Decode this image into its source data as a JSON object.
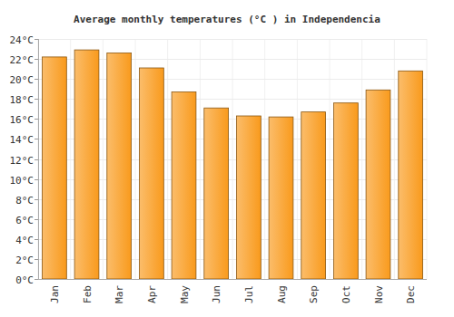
{
  "chart_data": {
    "type": "bar",
    "title": "Average monthly temperatures (°C ) in Independencia",
    "categories": [
      "Jan",
      "Feb",
      "Mar",
      "Apr",
      "May",
      "Jun",
      "Jul",
      "Aug",
      "Sep",
      "Oct",
      "Nov",
      "Dec"
    ],
    "values": [
      22.2,
      22.9,
      22.6,
      21.1,
      18.7,
      17.1,
      16.3,
      16.2,
      16.7,
      17.6,
      18.9,
      20.8
    ],
    "color": "#f99a1c",
    "ylim": [
      0,
      24
    ],
    "yticks": [
      {
        "value": 0,
        "label": "0°C"
      },
      {
        "value": 2,
        "label": "2°C"
      },
      {
        "value": 4,
        "label": "4°C"
      },
      {
        "value": 6,
        "label": "6°C"
      },
      {
        "value": 8,
        "label": "8°C"
      },
      {
        "value": 10,
        "label": "10°C"
      },
      {
        "value": 12,
        "label": "12°C"
      },
      {
        "value": 14,
        "label": "14°C"
      },
      {
        "value": 16,
        "label": "16°C"
      },
      {
        "value": 18,
        "label": "18°C"
      },
      {
        "value": 20,
        "label": "20°C"
      },
      {
        "value": 22,
        "label": "22°C"
      },
      {
        "value": 24,
        "label": "24°C"
      }
    ],
    "grid": true
  }
}
